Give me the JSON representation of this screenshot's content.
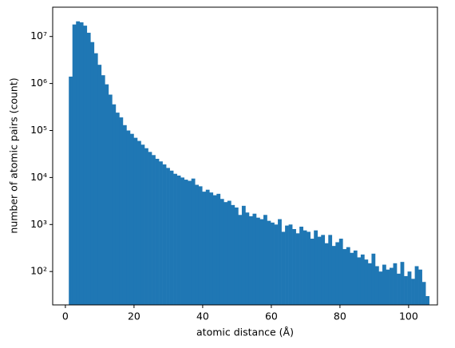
{
  "chart_data": {
    "type": "histogram",
    "xlabel": "atomic distance (Å)",
    "ylabel": "number of atomic pairs (count)",
    "yscale": "log",
    "color": "#1f77b4",
    "bins": [
      1,
      2.05,
      3.1,
      4.15,
      5.2,
      6.25,
      7.3,
      8.35,
      9.4,
      10.45,
      11.5,
      12.55,
      13.6,
      14.65,
      15.7,
      16.75,
      17.8,
      18.85,
      19.9,
      20.95,
      22,
      23.05,
      24.1,
      25.15,
      26.2,
      27.25,
      28.3,
      29.35,
      30.4,
      31.45,
      32.5,
      33.55,
      34.6,
      35.65,
      36.7,
      37.75,
      38.8,
      39.85,
      40.9,
      41.95,
      43,
      44.05,
      45.1,
      46.15,
      47.2,
      48.25,
      49.3,
      50.35,
      51.4,
      52.45,
      53.5,
      54.55,
      55.6,
      56.65,
      57.7,
      58.75,
      59.8,
      60.85,
      61.9,
      62.95,
      64,
      65.05,
      66.1,
      67.15,
      68.2,
      69.25,
      70.3,
      71.35,
      72.4,
      73.45,
      74.5,
      75.55,
      76.6,
      77.65,
      78.7,
      79.75,
      80.8,
      81.85,
      82.9,
      83.95,
      85,
      86.05,
      87.1,
      88.15,
      89.2,
      90.25,
      91.3,
      92.35,
      93.4,
      94.45,
      95.5,
      96.55,
      97.6,
      98.65,
      99.7,
      100.75,
      101.8,
      102.85,
      103.9,
      104.95,
      106
    ],
    "values": [
      1400000,
      18000000,
      21000000,
      20000000,
      17000000,
      12000000,
      7600000,
      4400000,
      2500000,
      1500000,
      960000,
      580000,
      360000,
      240000,
      190000,
      130000,
      100000,
      85000,
      70000,
      60000,
      50000,
      42000,
      35000,
      30000,
      25000,
      22000,
      19000,
      16000,
      14000,
      12000,
      11000,
      10000,
      9000,
      8500,
      9500,
      7000,
      6500,
      5000,
      5500,
      4800,
      4200,
      4500,
      3500,
      3000,
      3200,
      2600,
      2300,
      1600,
      2500,
      1800,
      1500,
      1700,
      1400,
      1300,
      1600,
      1200,
      1100,
      1000,
      1300,
      700,
      950,
      1000,
      800,
      650,
      900,
      750,
      700,
      500,
      750,
      550,
      600,
      400,
      600,
      350,
      420,
      500,
      300,
      330,
      250,
      280,
      200,
      230,
      180,
      150,
      240,
      130,
      100,
      140,
      110,
      120,
      150,
      90,
      160,
      80,
      100,
      70,
      130,
      110,
      60,
      30
    ],
    "xlim": [
      -3.7,
      108.4
    ],
    "xticks": [
      0,
      20,
      40,
      60,
      80,
      100
    ],
    "ylim": [
      19.5,
      42000000
    ],
    "yticks": [
      {
        "value": 100,
        "label": "10²"
      },
      {
        "value": 1000,
        "label": "10³"
      },
      {
        "value": 10000,
        "label": "10⁴"
      },
      {
        "value": 100000,
        "label": "10⁵"
      },
      {
        "value": 1000000,
        "label": "10⁶"
      },
      {
        "value": 10000000,
        "label": "10⁷"
      }
    ]
  }
}
